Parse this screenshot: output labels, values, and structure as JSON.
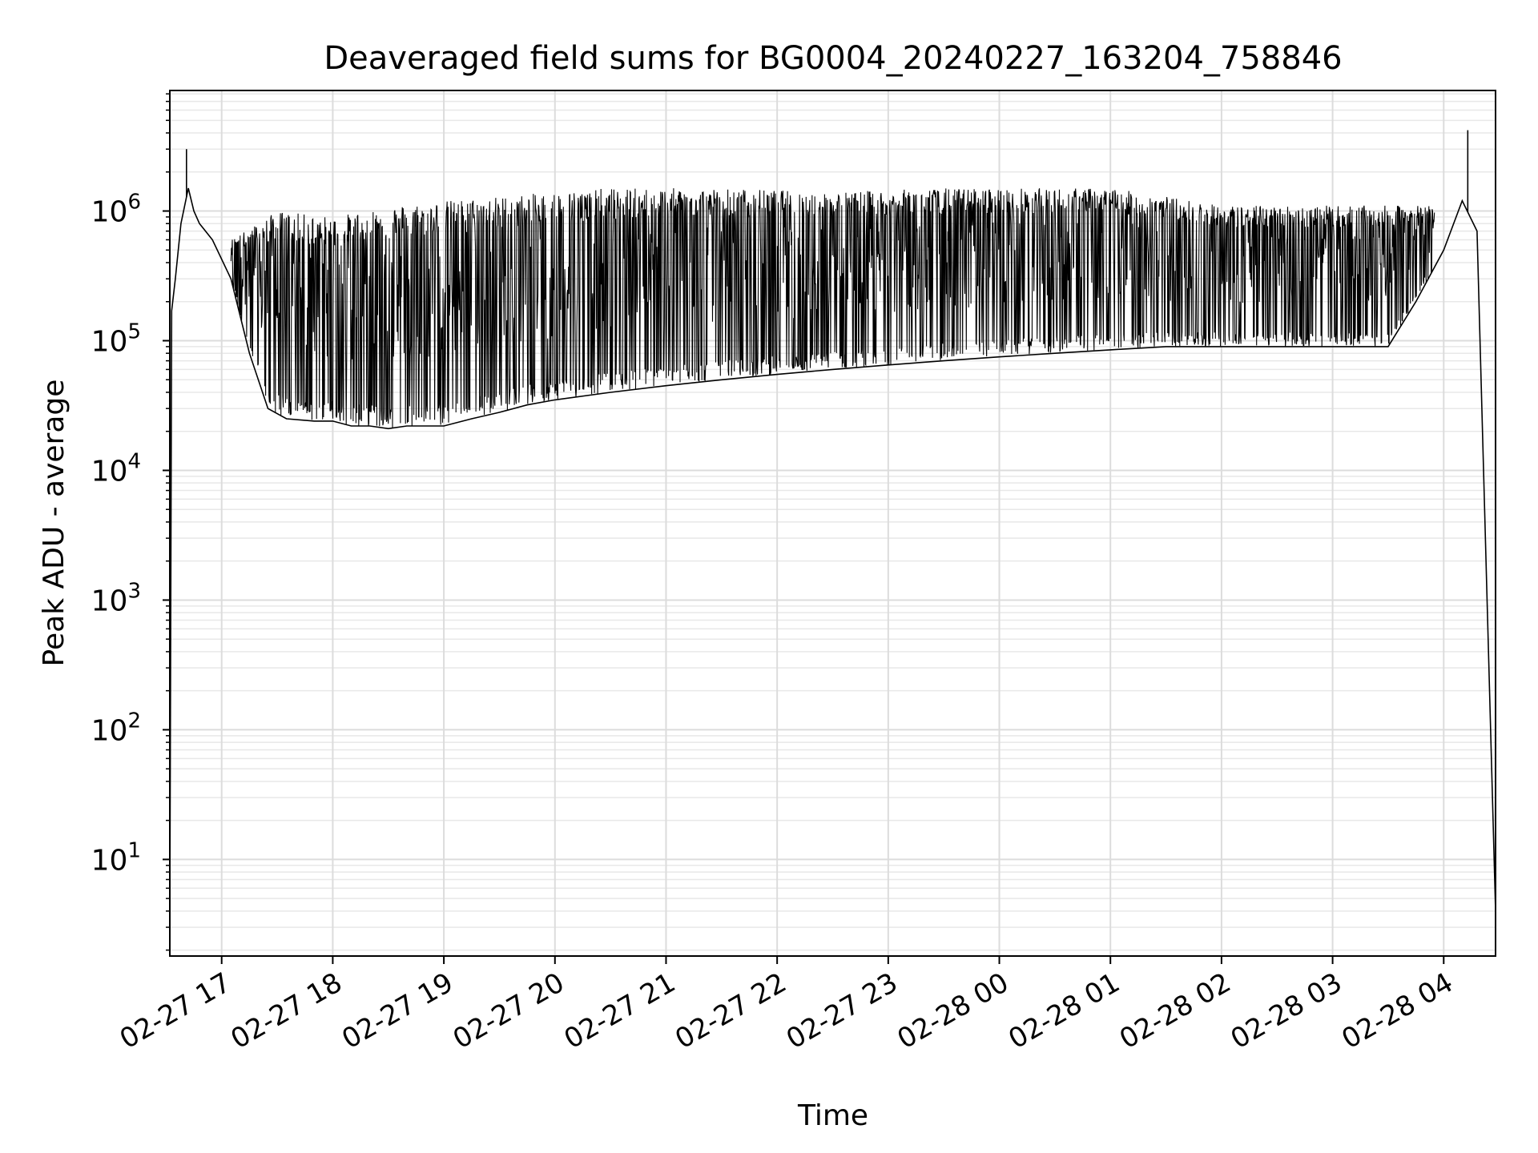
{
  "chart_data": {
    "type": "line",
    "title": "Deaveraged field sums for BG0004_20240227_163204_758846",
    "xlabel": "Time",
    "ylabel": "Peak ADU - average",
    "y_scale": "log",
    "ylim": [
      1.8,
      8500000
    ],
    "xlim": [
      "2024-02-27 16:32",
      "2024-02-28 04:28"
    ],
    "x_ticks": [
      "02-27 17",
      "02-27 18",
      "02-27 19",
      "02-27 20",
      "02-27 21",
      "02-27 22",
      "02-27 23",
      "02-28 00",
      "02-28 01",
      "02-28 02",
      "02-28 03",
      "02-28 04"
    ],
    "y_ticks": [
      {
        "value": 10,
        "base": "10",
        "exp": "1"
      },
      {
        "value": 100,
        "base": "10",
        "exp": "2"
      },
      {
        "value": 1000,
        "base": "10",
        "exp": "3"
      },
      {
        "value": 10000,
        "base": "10",
        "exp": "4"
      },
      {
        "value": 100000,
        "base": "10",
        "exp": "5"
      },
      {
        "value": 1000000,
        "base": "10",
        "exp": "6"
      }
    ],
    "grid": true,
    "line_color": "#000000",
    "series": [
      {
        "x": [
          "2024-02-27 16:32",
          "2024-02-27 16:33",
          "2024-02-27 16:35",
          "2024-02-27 16:38",
          "2024-02-27 16:42",
          "2024-02-27 16:45",
          "2024-02-27 16:48",
          "2024-02-27 16:55",
          "2024-02-27 17:05",
          "2024-02-27 17:15",
          "2024-02-27 17:25",
          "2024-02-27 17:35",
          "2024-02-27 17:50",
          "2024-02-27 18:00",
          "2024-02-27 18:10",
          "2024-02-27 18:20",
          "2024-02-27 18:30",
          "2024-02-27 18:40",
          "2024-02-27 18:50",
          "2024-02-27 19:00",
          "2024-02-27 19:15",
          "2024-02-27 19:30",
          "2024-02-27 19:45",
          "2024-02-27 20:00",
          "2024-02-27 20:30",
          "2024-02-27 21:00",
          "2024-02-27 21:30",
          "2024-02-27 22:00",
          "2024-02-27 22:30",
          "2024-02-27 23:00",
          "2024-02-27 23:30",
          "2024-02-28 00:00",
          "2024-02-28 00:30",
          "2024-02-28 01:00",
          "2024-02-28 01:30",
          "2024-02-28 02:00",
          "2024-02-28 02:30",
          "2024-02-28 03:00",
          "2024-02-28 03:30",
          "2024-02-28 03:45",
          "2024-02-28 04:00",
          "2024-02-28 04:10",
          "2024-02-28 04:18",
          "2024-02-28 04:28"
        ],
        "y": [
          3.5,
          170000,
          300000,
          800000,
          1500000,
          1000000,
          800000,
          600000,
          300000,
          80000,
          30000,
          25000,
          24000,
          24000,
          22000,
          22000,
          21000,
          22000,
          22000,
          22000,
          25000,
          28000,
          32000,
          35000,
          40000,
          45000,
          50000,
          55000,
          60000,
          65000,
          70000,
          75000,
          80000,
          85000,
          90000,
          90000,
          90000,
          90000,
          90000,
          200000,
          500000,
          1200000,
          700000,
          4
        ]
      }
    ],
    "envelope": {
      "x": [
        "2024-02-27 17:05",
        "2024-02-27 17:30",
        "2024-02-27 18:00",
        "2024-02-27 18:30",
        "2024-02-27 19:00",
        "2024-02-27 19:30",
        "2024-02-27 20:00",
        "2024-02-27 20:30",
        "2024-02-27 21:00",
        "2024-02-27 21:30",
        "2024-02-27 22:00",
        "2024-02-27 22:30",
        "2024-02-27 23:00",
        "2024-02-27 23:30",
        "2024-02-28 00:00",
        "2024-02-28 00:30",
        "2024-02-28 01:00",
        "2024-02-28 01:30",
        "2024-02-28 02:00",
        "2024-02-28 02:30",
        "2024-02-28 03:00",
        "2024-02-28 03:30",
        "2024-02-28 03:55"
      ],
      "y": [
        600000,
        1000000,
        900000,
        1100000,
        1200000,
        1300000,
        1400000,
        1500000,
        1500000,
        1500000,
        1450000,
        1400000,
        1450000,
        1500000,
        1500000,
        1500000,
        1500000,
        1300000,
        1100000,
        1100000,
        1100000,
        1100000,
        1100000
      ]
    },
    "spike_peaks": [
      {
        "x": "2024-02-27 16:41",
        "y": 3000000
      },
      {
        "x": "2024-02-28 04:13",
        "y": 4200000
      }
    ]
  }
}
